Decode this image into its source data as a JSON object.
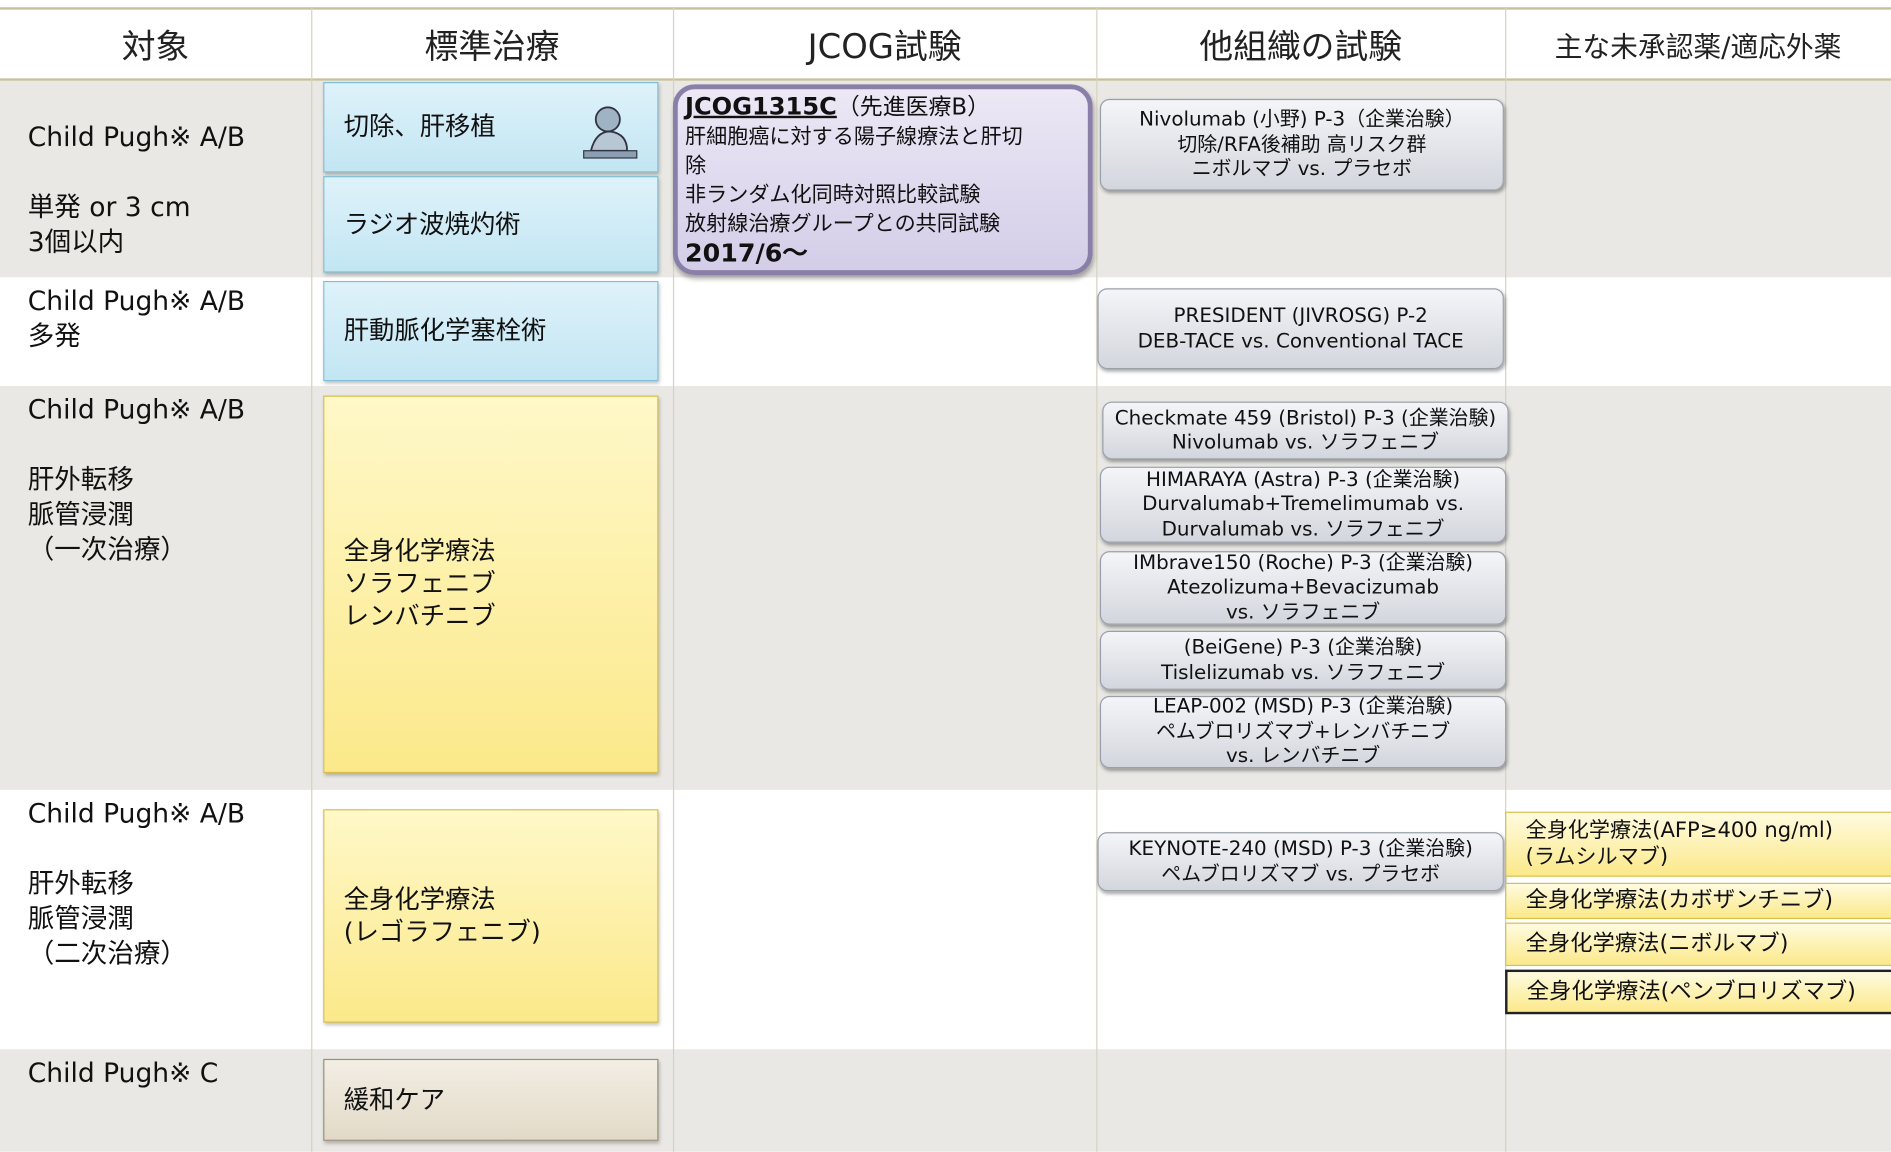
{
  "header": [
    "対象",
    "標準治療",
    "JCOG試験",
    "他組織の試験",
    "主な未承認薬/適応外薬"
  ],
  "rows": [
    {
      "target": [
        "Child Pugh※ A/B",
        "単発 or 3 cm\n3個以内"
      ],
      "standard": [
        "切除、肝移植",
        "ラジオ波焼灼術"
      ],
      "jcog": {
        "id": "JCOG1315C",
        "note": "（先進医療B）",
        "body": "肝細胞癌に対する陽子線療法と肝切\n除\n非ランダム化同時対照比較試験\n放射線治療グループとの共同試験",
        "date": "2017/6〜"
      },
      "other": [
        "Nivolumab (小野) P-3（企業治験）\n切除/RFA後補助 高リスク群\nニボルマブ vs. プラセボ"
      ]
    },
    {
      "target": [
        "Child Pugh※ A/B\n多発"
      ],
      "standard": [
        "肝動脈化学塞栓術"
      ],
      "other": [
        "PRESIDENT (JIVROSG) P-2\nDEB-TACE vs. Conventional TACE"
      ]
    },
    {
      "target": [
        "Child Pugh※ A/B",
        "肝外転移\n脈管浸潤\n（一次治療）"
      ],
      "standard": [
        "全身化学療法\nソラフェニブ\nレンバチニブ"
      ],
      "other": [
        "Checkmate 459 (Bristol) P-3 (企業治験)\nNivolumab  vs. ソラフェニブ",
        "HIMARAYA (Astra) P-3 (企業治験)\nDurvalumab+Tremelimumab vs.\nDurvalumab vs. ソラフェニブ",
        "IMbrave150 (Roche) P-3 (企業治験)\nAtezolizuma+Bevacizumab\nvs. ソラフェニブ",
        "(BeiGene) P-3 (企業治験)\nTislelizumab vs. ソラフェニブ",
        "LEAP-002 (MSD) P-3 (企業治験)\nペムブロリズマブ+レンバチニブ\nvs. レンバチニブ"
      ]
    },
    {
      "target": [
        "Child Pugh※ A/B",
        "肝外転移\n脈管浸潤\n（二次治療）"
      ],
      "standard": [
        "全身化学療法\n(レゴラフェニブ)"
      ],
      "other": [
        "KEYNOTE-240 (MSD) P-3 (企業治験)\nペムブロリズマブ vs. プラセボ"
      ],
      "unapproved": [
        "全身化学療法(AFP≥400 ng/ml)\n(ラムシルマブ)",
        "全身化学療法(カボザンチニブ)",
        "全身化学療法(ニボルマブ)",
        "全身化学療法(ペンブロリズマブ)"
      ]
    },
    {
      "target": [
        "Child Pugh※ C"
      ],
      "standard": [
        "緩和ケア"
      ]
    }
  ]
}
